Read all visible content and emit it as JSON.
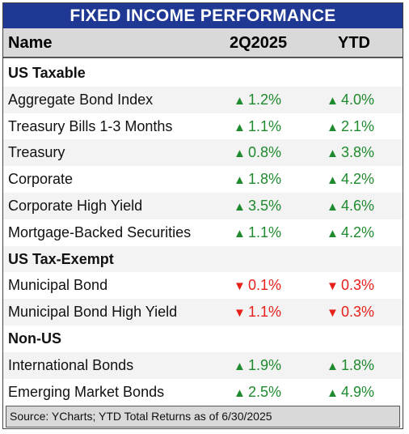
{
  "title": "FIXED INCOME PERFORMANCE",
  "header": {
    "name": "Name",
    "q": "2Q2025",
    "ytd": "YTD"
  },
  "icons": {
    "up": "▲",
    "down": "▼"
  },
  "colors": {
    "title_bg": "#1f3893",
    "up": "#1f8a2e",
    "down": "#e8201a"
  },
  "sections": [
    {
      "label": "US Taxable",
      "rows": [
        {
          "name": "Aggregate Bond Index",
          "q": "1.2%",
          "q_dir": "up",
          "ytd": "4.0%",
          "ytd_dir": "up"
        },
        {
          "name": "Treasury Bills 1-3 Months",
          "q": "1.1%",
          "q_dir": "up",
          "ytd": "2.1%",
          "ytd_dir": "up"
        },
        {
          "name": "Treasury",
          "q": "0.8%",
          "q_dir": "up",
          "ytd": "3.8%",
          "ytd_dir": "up"
        },
        {
          "name": "Corporate",
          "q": "1.8%",
          "q_dir": "up",
          "ytd": "4.2%",
          "ytd_dir": "up"
        },
        {
          "name": "Corporate High Yield",
          "q": "3.5%",
          "q_dir": "up",
          "ytd": "4.6%",
          "ytd_dir": "up"
        },
        {
          "name": "Mortgage-Backed Securities",
          "q": "1.1%",
          "q_dir": "up",
          "ytd": "4.2%",
          "ytd_dir": "up"
        }
      ]
    },
    {
      "label": "US Tax-Exempt",
      "rows": [
        {
          "name": "Municipal Bond",
          "q": "0.1%",
          "q_dir": "down",
          "ytd": "0.3%",
          "ytd_dir": "down"
        },
        {
          "name": "Municipal Bond High Yield",
          "q": "1.1%",
          "q_dir": "down",
          "ytd": "0.3%",
          "ytd_dir": "down"
        }
      ]
    },
    {
      "label": "Non-US",
      "rows": [
        {
          "name": "International Bonds",
          "q": "1.9%",
          "q_dir": "up",
          "ytd": "1.8%",
          "ytd_dir": "up"
        },
        {
          "name": "Emerging Market Bonds",
          "q": "2.5%",
          "q_dir": "up",
          "ytd": "4.9%",
          "ytd_dir": "up"
        }
      ]
    }
  ],
  "footer": "Source: YCharts; YTD Total Returns as of 6/30/2025"
}
